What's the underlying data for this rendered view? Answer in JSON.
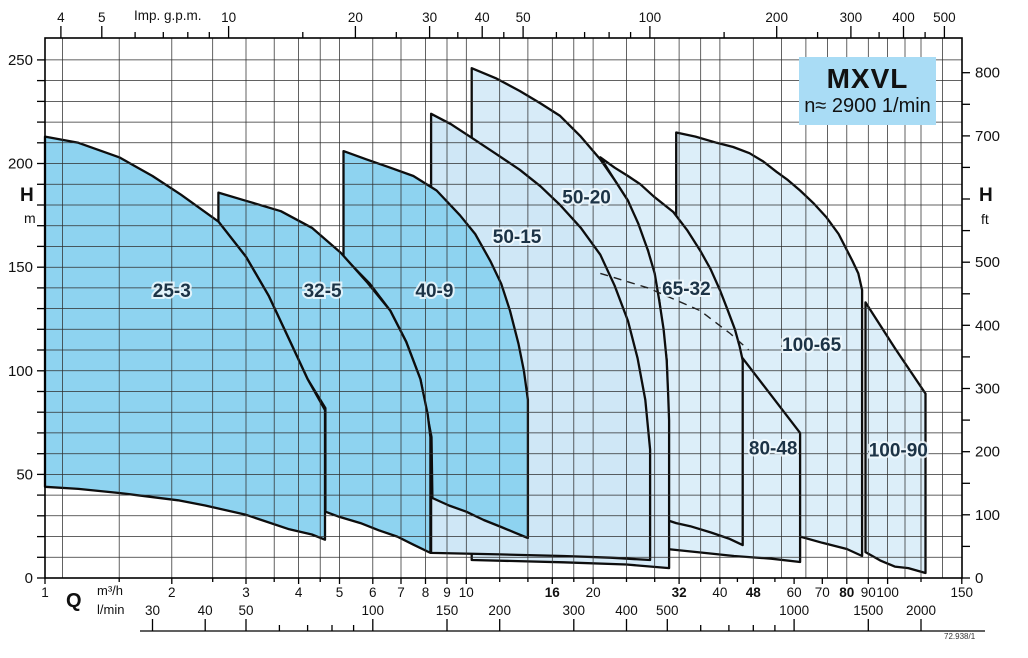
{
  "title_box": {
    "model": "MXVL",
    "speed": "n≈ 2900 1/min",
    "bg": "#a9dcf5"
  },
  "footnote": "72.938/1",
  "axes_labels": {
    "top_unit": "Imp. g.p.m.",
    "flow": "Q",
    "flow_unit_m3h": "m³/h",
    "flow_unit_lmin": "l/min",
    "head": "H",
    "head_unit_m": "m",
    "head_unit_ft": "ft"
  },
  "chart_data": {
    "type": "area",
    "title": "MXVL",
    "subtitle": "n≈ 2900 1/min",
    "xlabel": "Q",
    "ylabel": "H",
    "x_axis": {
      "scale": "log",
      "range_m3h": [
        1,
        150
      ],
      "m3h_labels": [
        1,
        2,
        3,
        4,
        5,
        6,
        7,
        8,
        9,
        10,
        16,
        20,
        32,
        40,
        48,
        60,
        70,
        80,
        90,
        100,
        150
      ],
      "m3h_bold": [
        16,
        32,
        48,
        80
      ],
      "m3h_minor": [
        1.5,
        2.5,
        3.5,
        4.5,
        12,
        14,
        18,
        24,
        28,
        36,
        44,
        54,
        120
      ],
      "lmin_labels": [
        30,
        40,
        50,
        100,
        150,
        200,
        300,
        400,
        500,
        1000,
        1500,
        2000
      ],
      "lmin_minor": [
        60,
        70,
        80,
        90,
        600,
        700,
        800,
        900
      ],
      "gpm_labels": [
        4,
        5,
        10,
        20,
        30,
        40,
        50,
        100,
        200,
        300,
        400,
        500
      ],
      "gpm_minor": [
        6,
        7,
        8,
        9,
        15,
        25,
        35,
        45,
        60,
        70,
        80,
        90,
        150,
        250,
        350,
        450
      ]
    },
    "y_axis": {
      "range_m": [
        0,
        260
      ],
      "m_label_step": 50,
      "m_tick_step": 10,
      "ft_max": 800,
      "ft_tick_step": 50,
      "ft_label_step": 100,
      "ft_label_skip": [
        600
      ]
    },
    "grid_q": [
      1.1,
      1.5,
      2,
      2.5,
      3,
      3.5,
      4,
      4.5,
      5,
      6,
      7,
      8,
      9,
      10,
      12,
      14,
      16,
      18,
      20,
      24,
      28,
      32,
      36,
      40,
      48,
      56,
      64,
      72,
      80,
      90,
      100,
      110,
      120,
      135
    ],
    "grid_h_step": 10,
    "regions": [
      {
        "name": "100-90",
        "label": "100-90",
        "label_q": 106,
        "label_h": 62,
        "fill": "#dceef9",
        "points": [
          [
            88.6,
            133
          ],
          [
            104,
            111
          ],
          [
            123,
            89
          ],
          [
            123,
            2.4
          ],
          [
            112,
            4.8
          ],
          [
            104,
            5.5
          ],
          [
            96,
            8.5
          ],
          [
            88.6,
            12.5
          ]
        ]
      },
      {
        "name": "100-65",
        "label": "100-65",
        "label_q": 66,
        "label_h": 113,
        "fill": "#dceef9",
        "points": [
          [
            31.5,
            215
          ],
          [
            35,
            213
          ],
          [
            39.3,
            210
          ],
          [
            43,
            208
          ],
          [
            47,
            205
          ],
          [
            50.7,
            201
          ],
          [
            54.5,
            196
          ],
          [
            58,
            192
          ],
          [
            62,
            187
          ],
          [
            66.6,
            181
          ],
          [
            71.6,
            174
          ],
          [
            76.5,
            166
          ],
          [
            82.5,
            153
          ],
          [
            85.2,
            147
          ],
          [
            87,
            139
          ],
          [
            87,
            10.6
          ],
          [
            80,
            14
          ],
          [
            70,
            17
          ],
          [
            62.5,
            19.8
          ],
          [
            50,
            23.5
          ],
          [
            40,
            26
          ],
          [
            31.5,
            28
          ]
        ]
      },
      {
        "name": "80-48",
        "label": "80-48",
        "label_q": 53.5,
        "label_h": 63,
        "fill": "#dceef9",
        "points": [
          [
            29.9,
            92
          ],
          [
            37,
            100
          ],
          [
            45.3,
            106
          ],
          [
            53,
            88
          ],
          [
            62,
            70
          ],
          [
            62,
            7.7
          ],
          [
            53,
            9.3
          ],
          [
            43.2,
            10.6
          ],
          [
            36,
            12.3
          ],
          [
            29.9,
            14
          ]
        ]
      },
      {
        "name": "65-32",
        "label": "65-32",
        "label_q": 33.3,
        "label_h": 140,
        "fill": "#dceef9",
        "points": [
          [
            20.8,
            203
          ],
          [
            22.5,
            198
          ],
          [
            24.2,
            194
          ],
          [
            25.9,
            190
          ],
          [
            27.9,
            184
          ],
          [
            31,
            176.6
          ],
          [
            33.4,
            168
          ],
          [
            35.9,
            158
          ],
          [
            38,
            149
          ],
          [
            40,
            139
          ],
          [
            41.6,
            130
          ],
          [
            43.4,
            120
          ],
          [
            44.5,
            112
          ],
          [
            45.3,
            105
          ],
          [
            45.3,
            15.9
          ],
          [
            42,
            19
          ],
          [
            38,
            22
          ],
          [
            34,
            25
          ],
          [
            31.5,
            26.5
          ],
          [
            29.9,
            28
          ],
          [
            30.2,
            76
          ],
          [
            29.9,
            105
          ],
          [
            28.7,
            134
          ],
          [
            27,
            158
          ],
          [
            24.2,
            182
          ],
          [
            22.5,
            192
          ]
        ]
      },
      {
        "name": "50-20",
        "label": "50-20",
        "label_q": 19.3,
        "label_h": 184,
        "fill": "#d7ebf8",
        "points": [
          [
            10.3,
            246
          ],
          [
            11.8,
            241
          ],
          [
            13.4,
            235
          ],
          [
            15,
            229
          ],
          [
            16.7,
            223
          ],
          [
            18.7,
            213
          ],
          [
            20.8,
            202
          ],
          [
            22.5,
            192
          ],
          [
            24.2,
            182
          ],
          [
            25.6,
            171
          ],
          [
            27,
            158
          ],
          [
            28,
            147
          ],
          [
            28.7,
            134
          ],
          [
            29.4,
            120
          ],
          [
            29.9,
            105
          ],
          [
            30.15,
            88
          ],
          [
            30.3,
            76
          ],
          [
            30.3,
            4.8
          ],
          [
            24,
            6.5
          ],
          [
            17,
            7.6
          ],
          [
            10.3,
            8.7
          ]
        ]
      },
      {
        "name": "50-15",
        "label": "50-15",
        "label_q": 13.2,
        "label_h": 165,
        "fill": "#cfe7f6",
        "points": [
          [
            8.25,
            224
          ],
          [
            9.2,
            219
          ],
          [
            10.2,
            213
          ],
          [
            11.7,
            205
          ],
          [
            13.4,
            197
          ],
          [
            15,
            189
          ],
          [
            16.7,
            180
          ],
          [
            18.7,
            169
          ],
          [
            20.8,
            156
          ],
          [
            22.5,
            141
          ],
          [
            24.2,
            124
          ],
          [
            25.5,
            106
          ],
          [
            26.6,
            86
          ],
          [
            27.3,
            62
          ],
          [
            27.3,
            8.7
          ],
          [
            22,
            9.8
          ],
          [
            17,
            10.6
          ],
          [
            12,
            11.4
          ],
          [
            8.25,
            12.1
          ]
        ]
      },
      {
        "name": "40-9",
        "label": "40-9",
        "label_q": 8.4,
        "label_h": 139,
        "fill": "#8ed3f0",
        "points": [
          [
            5.11,
            206
          ],
          [
            5.8,
            202
          ],
          [
            6.6,
            198
          ],
          [
            7.49,
            194
          ],
          [
            8.5,
            187
          ],
          [
            9.66,
            175
          ],
          [
            10.5,
            166
          ],
          [
            11.4,
            153
          ],
          [
            12.1,
            142
          ],
          [
            12.7,
            129
          ],
          [
            13.3,
            113
          ],
          [
            13.7,
            100
          ],
          [
            14,
            86
          ],
          [
            14,
            19.3
          ],
          [
            13,
            22
          ],
          [
            12.1,
            24.6
          ],
          [
            11,
            28
          ],
          [
            10,
            32
          ],
          [
            9.1,
            35
          ],
          [
            8.31,
            38.6
          ],
          [
            8.27,
            68
          ],
          [
            7.78,
            96
          ],
          [
            7.2,
            114
          ],
          [
            6.6,
            129
          ],
          [
            5.9,
            142
          ],
          [
            5.11,
            155
          ]
        ]
      },
      {
        "name": "32-5",
        "label": "32-5",
        "label_q": 4.56,
        "label_h": 139,
        "fill": "#8ed3f0",
        "points": [
          [
            2.58,
            186
          ],
          [
            3,
            182
          ],
          [
            3.63,
            177
          ],
          [
            4.3,
            169
          ],
          [
            5.03,
            157
          ],
          [
            5.8,
            143
          ],
          [
            6.6,
            129
          ],
          [
            7.2,
            114
          ],
          [
            7.78,
            96
          ],
          [
            8.1,
            79
          ],
          [
            8.22,
            68
          ],
          [
            8.22,
            12.1
          ],
          [
            7.5,
            16
          ],
          [
            6.86,
            20
          ],
          [
            6.2,
            23
          ],
          [
            5.61,
            26.5
          ],
          [
            5,
            29.5
          ],
          [
            4.63,
            32
          ],
          [
            4.63,
            82
          ],
          [
            4.2,
            96
          ],
          [
            3.8,
            115
          ],
          [
            3.4,
            136
          ],
          [
            3,
            155
          ],
          [
            2.58,
            172
          ]
        ]
      },
      {
        "name": "25-3",
        "label": "25-3",
        "label_q": 2.0,
        "label_h": 139,
        "fill": "#8ed3f0",
        "points": [
          [
            1,
            213
          ],
          [
            1.2,
            210
          ],
          [
            1.5,
            203
          ],
          [
            1.8,
            194
          ],
          [
            2.1,
            185
          ],
          [
            2.58,
            172
          ],
          [
            3,
            155
          ],
          [
            3.4,
            136
          ],
          [
            3.8,
            115
          ],
          [
            4.2,
            96
          ],
          [
            4.62,
            81
          ],
          [
            4.62,
            18.5
          ],
          [
            4.3,
            21
          ],
          [
            3.8,
            23.5
          ],
          [
            3,
            30.5
          ],
          [
            2.4,
            35
          ],
          [
            2.07,
            37.5
          ],
          [
            1.5,
            41
          ],
          [
            1.2,
            43
          ],
          [
            1,
            44
          ]
        ]
      }
    ],
    "dashed_line": [
      [
        20.8,
        147
      ],
      [
        27,
        140
      ],
      [
        35.9,
        129
      ],
      [
        42.3,
        118
      ],
      [
        46.8,
        110
      ]
    ]
  }
}
